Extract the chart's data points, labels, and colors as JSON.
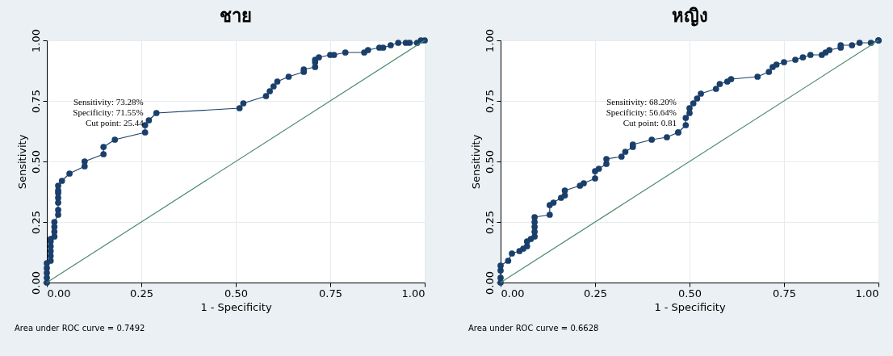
{
  "chart_data": [
    {
      "type": "line",
      "title": "ชาย",
      "xlabel": "1 - Specificity",
      "ylabel": "Sensitivity",
      "xlim": [
        0,
        1
      ],
      "ylim": [
        0,
        1
      ],
      "xticks": [
        {
          "value": 0,
          "label": "0.00"
        },
        {
          "value": 0.25,
          "label": "0.25"
        },
        {
          "value": 0.5,
          "label": "0.50"
        },
        {
          "value": 0.75,
          "label": "0.75"
        },
        {
          "value": 1,
          "label": "1.00"
        }
      ],
      "yticks": [
        {
          "value": 0,
          "label": "0.00"
        },
        {
          "value": 0.25,
          "label": "0.25"
        },
        {
          "value": 0.5,
          "label": "0.50"
        },
        {
          "value": 0.75,
          "label": "0.75"
        },
        {
          "value": 1,
          "label": "1.00"
        }
      ],
      "grid": true,
      "series": [
        {
          "color": "#1a3f6b",
          "marker": "circle",
          "x": [
            0,
            0,
            0,
            0,
            0,
            0.01,
            0.01,
            0.01,
            0.01,
            0.01,
            0.01,
            0.02,
            0.02,
            0.02,
            0.02,
            0.03,
            0.03,
            0.03,
            0.03,
            0.03,
            0.03,
            0.03,
            0.04,
            0.06,
            0.1,
            0.1,
            0.15,
            0.15,
            0.18,
            0.26,
            0.26,
            0.27,
            0.29,
            0.51,
            0.52,
            0.58,
            0.59,
            0.6,
            0.61,
            0.64,
            0.68,
            0.68,
            0.71,
            0.71,
            0.71,
            0.72,
            0.75,
            0.76,
            0.79,
            0.84,
            0.85,
            0.88,
            0.89,
            0.91,
            0.93,
            0.95,
            0.96,
            0.98,
            0.99,
            1
          ],
          "values": [
            0,
            0.02,
            0.04,
            0.06,
            0.08,
            0.09,
            0.11,
            0.13,
            0.15,
            0.17,
            0.18,
            0.19,
            0.21,
            0.23,
            0.25,
            0.28,
            0.3,
            0.33,
            0.35,
            0.37,
            0.38,
            0.4,
            0.42,
            0.45,
            0.48,
            0.5,
            0.53,
            0.56,
            0.59,
            0.62,
            0.65,
            0.67,
            0.7,
            0.72,
            0.74,
            0.77,
            0.79,
            0.81,
            0.83,
            0.85,
            0.87,
            0.88,
            0.89,
            0.91,
            0.92,
            0.93,
            0.94,
            0.94,
            0.95,
            0.95,
            0.96,
            0.97,
            0.97,
            0.98,
            0.99,
            0.99,
            0.99,
            0.99,
            1,
            1
          ]
        },
        {
          "color": "#4a8a6a",
          "marker": "none",
          "x": [
            0,
            1
          ],
          "values": [
            0,
            1
          ]
        }
      ],
      "annotations": [
        {
          "text": "Sensitivity: 73.28%\nSpecificity: 71.55%\nCut point:   25.44",
          "x": 0.29,
          "y": 0.7
        },
        "Area under ROC curve = 0.7492"
      ]
    },
    {
      "type": "line",
      "title": "หญิง",
      "xlabel": "1 - Specificity",
      "ylabel": "Sensitivity",
      "xlim": [
        0,
        1
      ],
      "ylim": [
        0,
        1
      ],
      "xticks": [
        {
          "value": 0,
          "label": "0.00"
        },
        {
          "value": 0.25,
          "label": "0.25"
        },
        {
          "value": 0.5,
          "label": "0.50"
        },
        {
          "value": 0.75,
          "label": "0.75"
        },
        {
          "value": 1,
          "label": "1.00"
        }
      ],
      "yticks": [
        {
          "value": 0,
          "label": "0.00"
        },
        {
          "value": 0.25,
          "label": "0.25"
        },
        {
          "value": 0.5,
          "label": "0.50"
        },
        {
          "value": 0.75,
          "label": "0.75"
        },
        {
          "value": 1,
          "label": "1.00"
        }
      ],
      "grid": true,
      "series": [
        {
          "color": "#1a3f6b",
          "marker": "circle",
          "x": [
            0,
            0,
            0,
            0,
            0.02,
            0.03,
            0.05,
            0.06,
            0.07,
            0.07,
            0.08,
            0.09,
            0.09,
            0.09,
            0.09,
            0.09,
            0.13,
            0.13,
            0.14,
            0.16,
            0.17,
            0.17,
            0.21,
            0.22,
            0.25,
            0.25,
            0.26,
            0.28,
            0.28,
            0.32,
            0.33,
            0.35,
            0.35,
            0.4,
            0.44,
            0.47,
            0.47,
            0.49,
            0.49,
            0.5,
            0.5,
            0.51,
            0.52,
            0.53,
            0.57,
            0.58,
            0.6,
            0.61,
            0.68,
            0.71,
            0.72,
            0.73,
            0.75,
            0.78,
            0.8,
            0.82,
            0.85,
            0.86,
            0.87,
            0.9,
            0.9,
            0.93,
            0.95,
            0.98,
            1,
            1
          ],
          "values": [
            0,
            0.02,
            0.05,
            0.07,
            0.09,
            0.12,
            0.13,
            0.14,
            0.15,
            0.17,
            0.18,
            0.19,
            0.21,
            0.23,
            0.25,
            0.27,
            0.28,
            0.32,
            0.33,
            0.35,
            0.36,
            0.38,
            0.4,
            0.41,
            0.43,
            0.46,
            0.47,
            0.49,
            0.51,
            0.52,
            0.54,
            0.56,
            0.57,
            0.59,
            0.6,
            0.62,
            0.62,
            0.65,
            0.68,
            0.7,
            0.72,
            0.74,
            0.76,
            0.78,
            0.8,
            0.82,
            0.83,
            0.84,
            0.85,
            0.87,
            0.89,
            0.9,
            0.91,
            0.92,
            0.93,
            0.94,
            0.94,
            0.95,
            0.96,
            0.97,
            0.98,
            0.98,
            0.99,
            0.99,
            1,
            1
          ]
        },
        {
          "color": "#4a8a6a",
          "marker": "none",
          "x": [
            0,
            1
          ],
          "values": [
            0,
            1
          ]
        }
      ],
      "annotations": [
        {
          "text": "Sensitivity: 68.20%\nSpecificity: 56.64%\nCut point:   0.81",
          "x": 0.5,
          "y": 0.7
        },
        "Area under ROC curve = 0.6628"
      ]
    }
  ]
}
